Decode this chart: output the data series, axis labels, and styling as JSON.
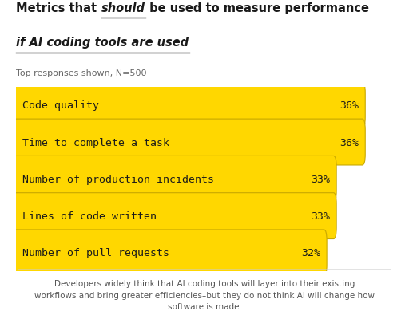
{
  "title_pre": "Metrics that ",
  "title_should": "should",
  "title_post": " be used to measure performance",
  "title_line2": "if AI coding tools are used",
  "subtitle": "Top responses shown, N=500",
  "categories": [
    "Code quality",
    "Time to complete a task",
    "Number of production incidents",
    "Lines of code written",
    "Number of pull requests"
  ],
  "values": [
    36,
    36,
    33,
    33,
    32
  ],
  "labels": [
    "36%",
    "36%",
    "33%",
    "33%",
    "32%"
  ],
  "bar_color": "#FFD700",
  "bar_edge_color": "#C8A800",
  "text_color": "#1a1a1a",
  "bg_color": "#ffffff",
  "footer_text": "Developers widely think that AI coding tools will layer into their existing\nworkflows and bring greater efficiencies–but they do not think AI will change how\nsoftware is made.",
  "max_value": 40,
  "bar_text_fontsize": 9.5,
  "title_fontsize": 10.5,
  "subtitle_fontsize": 8,
  "footer_fontsize": 7.5
}
